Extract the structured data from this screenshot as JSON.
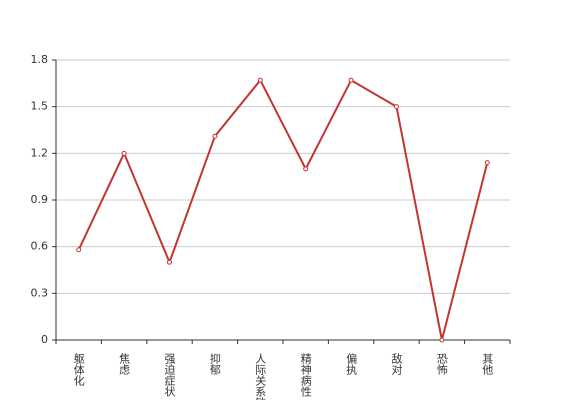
{
  "chart_data": {
    "type": "line",
    "categories": [
      "躯体化",
      "焦虑",
      "强迫症状",
      "抑郁",
      "人际关系敏感",
      "精神病性",
      "偏执",
      "敌对",
      "恐怖",
      "其他"
    ],
    "values": [
      0.58,
      1.2,
      0.5,
      1.31,
      1.67,
      1.1,
      1.67,
      1.5,
      0,
      1.14
    ],
    "color": "#c23531",
    "ylim": [
      0,
      1.8
    ],
    "yticks": [
      0,
      0.3,
      0.6,
      0.9,
      1.2,
      1.5,
      1.8
    ],
    "grid": true
  }
}
